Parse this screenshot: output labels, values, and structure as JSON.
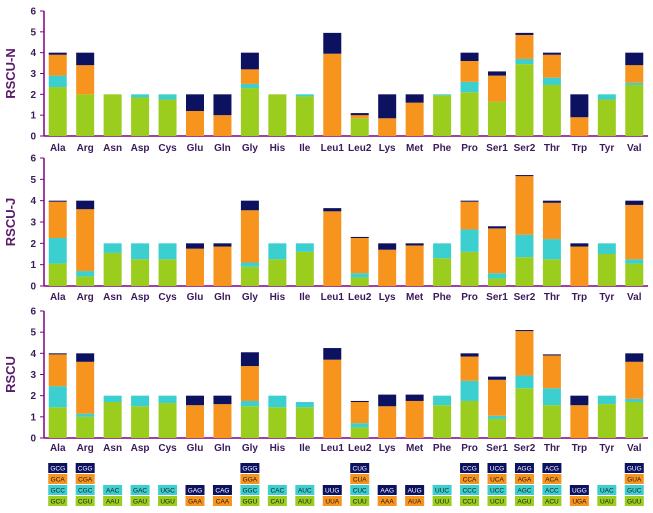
{
  "palette": {
    "first": "#9ACD1E",
    "second": "#3CCFCF",
    "third": "#F7941D",
    "fourth": "#0C1260",
    "axis": "#800080"
  },
  "chart_data": [
    {
      "type": "bar",
      "stacked": true,
      "ylabel": "RSCU-N",
      "ylim": [
        0,
        6
      ],
      "yticks": [
        0,
        1,
        2,
        3,
        4,
        5,
        6
      ],
      "categories": [
        "Ala",
        "Arg",
        "Asn",
        "Asp",
        "Cys",
        "Glu",
        "Gln",
        "Gly",
        "His",
        "Ile",
        "Leu1",
        "Leu2",
        "Lys",
        "Met",
        "Phe",
        "Pro",
        "Ser1",
        "Ser2",
        "Thr",
        "Trp",
        "Tyr",
        "Val"
      ],
      "series": [
        {
          "name": "codon-1",
          "values": [
            2.35,
            2.0,
            2.0,
            1.85,
            1.75,
            0.0,
            0.0,
            2.3,
            2.0,
            1.9,
            0.0,
            0.85,
            0.0,
            0.0,
            1.95,
            2.1,
            1.65,
            3.45,
            2.45,
            0.0,
            1.75,
            2.45
          ]
        },
        {
          "name": "codon-2",
          "values": [
            0.55,
            0.0,
            0.0,
            0.15,
            0.25,
            0.0,
            0.0,
            0.2,
            0.0,
            0.1,
            0.0,
            0.0,
            0.0,
            0.0,
            0.05,
            0.5,
            0.0,
            0.25,
            0.35,
            0.0,
            0.25,
            0.1
          ]
        },
        {
          "name": "codon-3",
          "values": [
            1.0,
            1.4,
            0.0,
            0.0,
            0.0,
            1.2,
            1.0,
            0.7,
            0.0,
            0.0,
            3.95,
            0.15,
            0.85,
            1.6,
            0.0,
            1.0,
            1.25,
            1.15,
            1.1,
            0.9,
            0.0,
            0.85
          ]
        },
        {
          "name": "codon-4",
          "values": [
            0.1,
            0.6,
            0.0,
            0.0,
            0.0,
            0.8,
            1.0,
            0.8,
            0.0,
            0.0,
            1.0,
            0.1,
            1.15,
            0.4,
            0.0,
            0.4,
            0.2,
            0.1,
            0.1,
            1.1,
            0.0,
            0.6
          ]
        }
      ]
    },
    {
      "type": "bar",
      "stacked": true,
      "ylabel": "RSCU-J",
      "ylim": [
        0,
        6
      ],
      "yticks": [
        0,
        1,
        2,
        3,
        4,
        5,
        6
      ],
      "categories": [
        "Ala",
        "Arg",
        "Asn",
        "Asp",
        "Cys",
        "Glu",
        "Gln",
        "Gly",
        "His",
        "Ile",
        "Leu1",
        "Leu2",
        "Lys",
        "Met",
        "Phe",
        "Pro",
        "Ser1",
        "Ser2",
        "Thr",
        "Trp",
        "Tyr",
        "Val"
      ],
      "series": [
        {
          "name": "codon-1",
          "values": [
            1.05,
            0.45,
            1.55,
            1.25,
            1.25,
            0.0,
            0.0,
            0.9,
            1.25,
            1.6,
            0.0,
            0.4,
            0.0,
            0.0,
            1.3,
            1.6,
            0.35,
            1.35,
            1.25,
            0.0,
            1.5,
            1.05
          ]
        },
        {
          "name": "codon-2",
          "values": [
            1.2,
            0.25,
            0.45,
            0.75,
            0.75,
            0.0,
            0.0,
            0.2,
            0.75,
            0.4,
            0.0,
            0.2,
            0.0,
            0.0,
            0.7,
            1.05,
            0.25,
            1.05,
            0.95,
            0.0,
            0.5,
            0.2
          ]
        },
        {
          "name": "codon-3",
          "values": [
            1.7,
            2.9,
            0.0,
            0.0,
            0.0,
            1.75,
            1.85,
            2.45,
            0.0,
            0.0,
            3.5,
            1.65,
            1.7,
            1.9,
            0.0,
            1.3,
            2.1,
            2.75,
            1.7,
            1.85,
            0.0,
            2.55
          ]
        },
        {
          "name": "codon-4",
          "values": [
            0.05,
            0.4,
            0.0,
            0.0,
            0.0,
            0.25,
            0.15,
            0.45,
            0.0,
            0.0,
            0.15,
            0.05,
            0.3,
            0.1,
            0.0,
            0.05,
            0.1,
            0.05,
            0.1,
            0.15,
            0.0,
            0.2
          ]
        }
      ]
    },
    {
      "type": "bar",
      "stacked": true,
      "ylabel": "RSCU",
      "ylim": [
        0,
        6
      ],
      "yticks": [
        0,
        1,
        2,
        3,
        4,
        5,
        6
      ],
      "categories": [
        "Ala",
        "Arg",
        "Asn",
        "Asp",
        "Cys",
        "Glu",
        "Gln",
        "Gly",
        "His",
        "Ile",
        "Leu1",
        "Leu2",
        "Lys",
        "Met",
        "Phe",
        "Pro",
        "Ser1",
        "Ser2",
        "Thr",
        "Trp",
        "Tyr",
        "Val"
      ],
      "series": [
        {
          "name": "codon-1",
          "values": [
            1.45,
            1.0,
            1.7,
            1.5,
            1.65,
            0.0,
            0.0,
            1.5,
            1.45,
            1.45,
            0.0,
            0.5,
            0.0,
            0.0,
            1.55,
            1.75,
            0.9,
            2.35,
            1.55,
            0.0,
            1.6,
            1.7
          ]
        },
        {
          "name": "codon-2",
          "values": [
            1.0,
            0.15,
            0.3,
            0.5,
            0.35,
            0.0,
            0.0,
            0.25,
            0.55,
            0.25,
            0.0,
            0.2,
            0.0,
            0.0,
            0.45,
            0.95,
            0.15,
            0.6,
            0.8,
            0.0,
            0.4,
            0.15
          ]
        },
        {
          "name": "codon-3",
          "values": [
            1.5,
            2.45,
            0.0,
            0.0,
            0.0,
            1.55,
            1.6,
            1.65,
            0.0,
            0.0,
            3.7,
            1.0,
            1.5,
            1.75,
            0.0,
            1.15,
            1.7,
            2.1,
            1.55,
            1.55,
            0.0,
            1.75
          ]
        },
        {
          "name": "codon-4",
          "values": [
            0.05,
            0.4,
            0.0,
            0.0,
            0.0,
            0.45,
            0.4,
            0.65,
            0.0,
            0.0,
            0.55,
            0.05,
            0.55,
            0.3,
            0.0,
            0.15,
            0.15,
            0.05,
            0.05,
            0.45,
            0.0,
            0.4
          ]
        }
      ]
    }
  ],
  "codon_legend": [
    [
      "GCU",
      "GCC",
      "GCA",
      "GCG"
    ],
    [
      "CGU",
      "CGC",
      "CGA",
      "CGG"
    ],
    [
      "AAU",
      "AAC"
    ],
    [
      "GAU",
      "GAC"
    ],
    [
      "UGU",
      "UGC"
    ],
    [
      "GAA",
      "GAG"
    ],
    [
      "CAA",
      "CAG"
    ],
    [
      "GGU",
      "GGC",
      "GGA",
      "GGG"
    ],
    [
      "CAU",
      "CAC"
    ],
    [
      "AUU",
      "AUC"
    ],
    [
      "UUA",
      "UUG"
    ],
    [
      "CUU",
      "CUC",
      "CUA",
      "CUG"
    ],
    [
      "AAA",
      "AAG"
    ],
    [
      "AUA",
      "AUG"
    ],
    [
      "UUU",
      "UUC"
    ],
    [
      "CCU",
      "CCC",
      "CCA",
      "CCG"
    ],
    [
      "UCU",
      "UCC",
      "UCA",
      "UCG"
    ],
    [
      "AGU",
      "AGC",
      "AGA",
      "AGG"
    ],
    [
      "ACU",
      "ACC",
      "ACA",
      "ACG"
    ],
    [
      "UGA",
      "UGG"
    ],
    [
      "UAU",
      "UAC"
    ],
    [
      "GUU",
      "GUC",
      "GUA",
      "GUG"
    ]
  ],
  "codon_legend_colors": [
    [
      "first",
      "second",
      "third",
      "fourth"
    ],
    [
      "first",
      "second",
      "third",
      "fourth"
    ],
    [
      "first",
      "second"
    ],
    [
      "first",
      "second"
    ],
    [
      "first",
      "second"
    ],
    [
      "third",
      "fourth"
    ],
    [
      "third",
      "fourth"
    ],
    [
      "first",
      "second",
      "third",
      "fourth"
    ],
    [
      "first",
      "second"
    ],
    [
      "first",
      "second"
    ],
    [
      "third",
      "fourth"
    ],
    [
      "first",
      "second",
      "third",
      "fourth"
    ],
    [
      "third",
      "fourth"
    ],
    [
      "third",
      "fourth"
    ],
    [
      "first",
      "second"
    ],
    [
      "first",
      "second",
      "third",
      "fourth"
    ],
    [
      "first",
      "second",
      "third",
      "fourth"
    ],
    [
      "first",
      "second",
      "third",
      "fourth"
    ],
    [
      "first",
      "second",
      "third",
      "fourth"
    ],
    [
      "third",
      "fourth"
    ],
    [
      "first",
      "second"
    ],
    [
      "first",
      "second",
      "third",
      "fourth"
    ]
  ]
}
